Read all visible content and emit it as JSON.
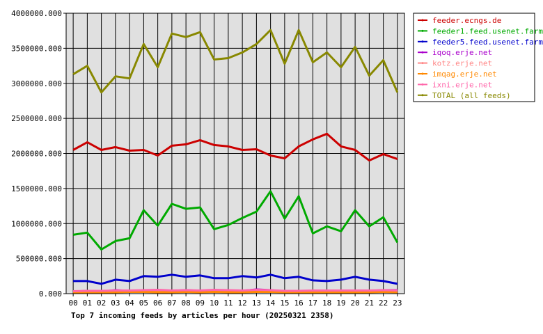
{
  "chart_data": {
    "type": "line",
    "title": "Top 7 incoming feeds by articles per hour (20250321 2358)",
    "xlabel": "",
    "ylabel": "",
    "categories": [
      "00",
      "01",
      "02",
      "03",
      "04",
      "05",
      "06",
      "07",
      "08",
      "09",
      "10",
      "11",
      "12",
      "13",
      "14",
      "15",
      "16",
      "17",
      "18",
      "19",
      "20",
      "21",
      "22",
      "23"
    ],
    "ylim": [
      0,
      4000000
    ],
    "yticks": [
      0,
      500000,
      1000000,
      1500000,
      2000000,
      2500000,
      3000000,
      3500000,
      4000000
    ],
    "ytick_labels": [
      "0.000",
      "500000.000",
      "1000000.000",
      "1500000.000",
      "2000000.000",
      "2500000.000",
      "3000000.000",
      "3500000.000",
      "4000000.000"
    ],
    "grid": true,
    "legend_position": "right",
    "background": "#e0e0e0",
    "series": [
      {
        "name": "feeder.ecngs.de",
        "color": "#cc0000",
        "values": [
          2050000,
          2160000,
          2050000,
          2090000,
          2040000,
          2050000,
          1970000,
          2110000,
          2130000,
          2190000,
          2120000,
          2100000,
          2050000,
          2060000,
          1970000,
          1930000,
          2100000,
          2200000,
          2280000,
          2100000,
          2050000,
          1900000,
          1990000,
          1920000
        ]
      },
      {
        "name": "feeder1.feed.usenet.farm",
        "color": "#00aa00",
        "values": [
          840000,
          870000,
          630000,
          750000,
          790000,
          1190000,
          970000,
          1280000,
          1210000,
          1230000,
          920000,
          980000,
          1080000,
          1170000,
          1460000,
          1070000,
          1390000,
          860000,
          960000,
          890000,
          1190000,
          960000,
          1090000,
          730000
        ]
      },
      {
        "name": "feeder5.feed.usenet.farm",
        "color": "#0000cc",
        "values": [
          180000,
          180000,
          140000,
          200000,
          180000,
          250000,
          240000,
          270000,
          240000,
          260000,
          220000,
          220000,
          250000,
          230000,
          270000,
          220000,
          240000,
          190000,
          180000,
          200000,
          240000,
          200000,
          180000,
          140000
        ]
      },
      {
        "name": "iqoq.erje.net",
        "color": "#aa00cc",
        "values": [
          30000,
          40000,
          30000,
          50000,
          40000,
          40000,
          50000,
          40000,
          50000,
          40000,
          50000,
          40000,
          40000,
          60000,
          50000,
          30000,
          40000,
          40000,
          40000,
          40000,
          40000,
          40000,
          50000,
          50000
        ]
      },
      {
        "name": "kotz.erje.net",
        "color": "#ff8888",
        "values": [
          25000,
          30000,
          30000,
          30000,
          35000,
          35000,
          35000,
          30000,
          35000,
          30000,
          35000,
          35000,
          35000,
          45000,
          40000,
          30000,
          30000,
          35000,
          35000,
          35000,
          35000,
          35000,
          35000,
          30000
        ]
      },
      {
        "name": "imqag.erje.net",
        "color": "#ff8800",
        "values": [
          20000,
          20000,
          20000,
          20000,
          25000,
          25000,
          20000,
          20000,
          25000,
          20000,
          25000,
          20000,
          20000,
          25000,
          25000,
          20000,
          20000,
          20000,
          20000,
          20000,
          20000,
          20000,
          25000,
          20000
        ]
      },
      {
        "name": "ixni.erje.net",
        "color": "#ff66aa",
        "values": [
          35000,
          40000,
          40000,
          45000,
          45000,
          50000,
          55000,
          45000,
          50000,
          45000,
          55000,
          50000,
          45000,
          55000,
          50000,
          40000,
          40000,
          45000,
          45000,
          45000,
          45000,
          45000,
          50000,
          45000
        ]
      },
      {
        "name": "TOTAL (all feeds)",
        "color": "#888800",
        "values": [
          3130000,
          3250000,
          2870000,
          3100000,
          3070000,
          3560000,
          3230000,
          3710000,
          3660000,
          3730000,
          3340000,
          3360000,
          3440000,
          3560000,
          3760000,
          3280000,
          3760000,
          3300000,
          3440000,
          3230000,
          3520000,
          3110000,
          3330000,
          2870000
        ]
      }
    ]
  }
}
